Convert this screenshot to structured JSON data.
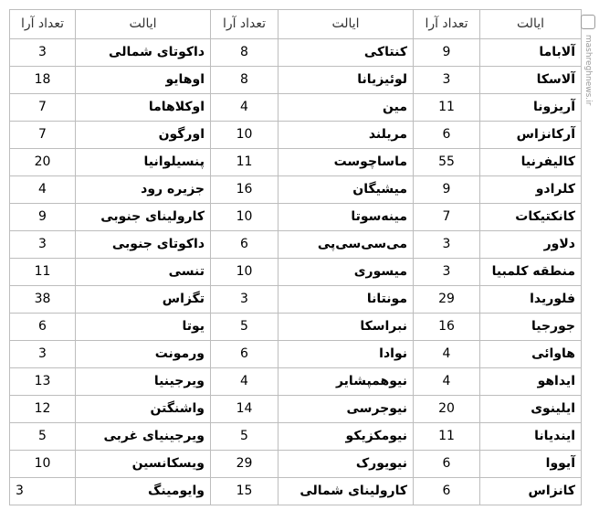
{
  "headers": {
    "state": "ایالت",
    "votes": "تعداد آرا"
  },
  "watermark": "mashreghnews.ir",
  "rows": [
    [
      {
        "state": "آلاباما",
        "votes": "9"
      },
      {
        "state": "کنتاکی",
        "votes": "8"
      },
      {
        "state": "داکوتای شمالی",
        "votes": "3"
      }
    ],
    [
      {
        "state": "آلاسکا",
        "votes": "3"
      },
      {
        "state": "لوئیزیانا",
        "votes": "8"
      },
      {
        "state": "اوهایو",
        "votes": "18"
      }
    ],
    [
      {
        "state": "آریزونا",
        "votes": "11"
      },
      {
        "state": "مین",
        "votes": "4"
      },
      {
        "state": "اوکلاهاما",
        "votes": "7"
      }
    ],
    [
      {
        "state": "آرکانزاس",
        "votes": "6"
      },
      {
        "state": "مریلند",
        "votes": "10"
      },
      {
        "state": "اورگون",
        "votes": "7"
      }
    ],
    [
      {
        "state": "کالیفرنیا",
        "votes": "55"
      },
      {
        "state": "ماساچوست",
        "votes": "11"
      },
      {
        "state": "پنسیلوانیا",
        "votes": "20"
      }
    ],
    [
      {
        "state": "کلرادو",
        "votes": "9"
      },
      {
        "state": "میشیگان",
        "votes": "16"
      },
      {
        "state": "جزیره رود",
        "votes": "4"
      }
    ],
    [
      {
        "state": "کانکتیکات",
        "votes": "7"
      },
      {
        "state": "مینه‌سوتا",
        "votes": "10"
      },
      {
        "state": "کارولینای جنوبی",
        "votes": "9"
      }
    ],
    [
      {
        "state": "دلاور",
        "votes": "3"
      },
      {
        "state": "می‌سی‌سی‌پی",
        "votes": "6"
      },
      {
        "state": "داکوتای جنوبی",
        "votes": "3"
      }
    ],
    [
      {
        "state": "منطقه کلمبیا",
        "votes": "3"
      },
      {
        "state": "میسوری",
        "votes": "10"
      },
      {
        "state": "تنسی",
        "votes": "11"
      }
    ],
    [
      {
        "state": "فلوریدا",
        "votes": "29"
      },
      {
        "state": "مونتانا",
        "votes": "3"
      },
      {
        "state": "تگزاس",
        "votes": "38"
      }
    ],
    [
      {
        "state": "جورجیا",
        "votes": "16"
      },
      {
        "state": "نبراسکا",
        "votes": "5"
      },
      {
        "state": "یوتا",
        "votes": "6"
      }
    ],
    [
      {
        "state": "هاوائی",
        "votes": "4"
      },
      {
        "state": "نوادا",
        "votes": "6"
      },
      {
        "state": "ورمونت",
        "votes": "3"
      }
    ],
    [
      {
        "state": "ایداهو",
        "votes": "4"
      },
      {
        "state": "نیوهمپشایر",
        "votes": "4"
      },
      {
        "state": "ویرجینیا",
        "votes": "13"
      }
    ],
    [
      {
        "state": "ایلینوی",
        "votes": "20"
      },
      {
        "state": "نیوجرسی",
        "votes": "14"
      },
      {
        "state": "واشنگتن",
        "votes": "12"
      }
    ],
    [
      {
        "state": "ایندیانا",
        "votes": "11"
      },
      {
        "state": "نیومکزیکو",
        "votes": "5"
      },
      {
        "state": "ویرجینیای غربی",
        "votes": "5"
      }
    ],
    [
      {
        "state": "آیووا",
        "votes": "6"
      },
      {
        "state": "نیویورک",
        "votes": "29"
      },
      {
        "state": "ویسکانسین",
        "votes": "10"
      }
    ],
    [
      {
        "state": "کانزاس",
        "votes": "6"
      },
      {
        "state": "کارولینای شمالی",
        "votes": "15"
      },
      {
        "state": "وایومینگ",
        "votes": "3"
      }
    ]
  ]
}
